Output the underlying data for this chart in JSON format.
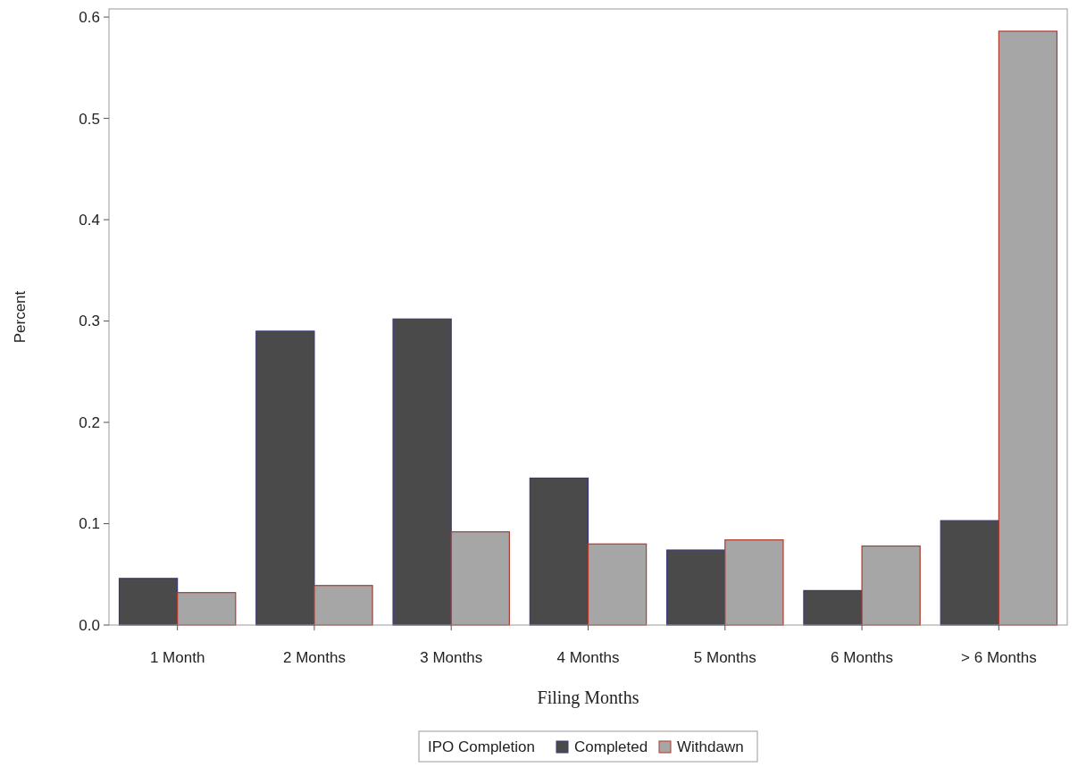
{
  "chart_data": {
    "type": "bar",
    "xlabel": "Filing Months",
    "ylabel": "Percent",
    "legend_title": "IPO Completion",
    "categories": [
      "1 Month",
      "2 Months",
      "3 Months",
      "4 Months",
      "5 Months",
      "6 Months",
      "> 6 Months"
    ],
    "series": [
      {
        "name": "Completed",
        "color": "#4a4a4a",
        "values": [
          0.046,
          0.29,
          0.302,
          0.145,
          0.074,
          0.034,
          0.103
        ]
      },
      {
        "name": "Withdawn",
        "color": "#a6a6a6",
        "values": [
          0.032,
          0.039,
          0.092,
          0.08,
          0.084,
          0.078,
          0.586
        ]
      }
    ],
    "ylim": [
      0,
      0.608
    ],
    "yticks": [
      {
        "value": 0,
        "label": "0.0"
      },
      0.1,
      0.2,
      0.3,
      0.4,
      0.5,
      0.6
    ],
    "grid": false,
    "legend": "bottom"
  }
}
